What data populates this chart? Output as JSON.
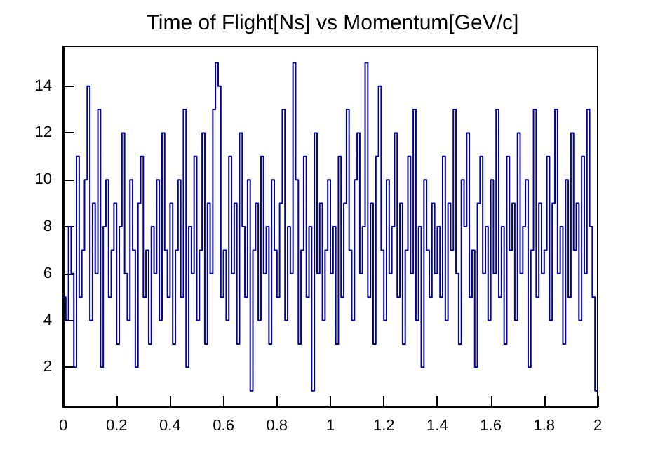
{
  "chart_data": {
    "type": "histogram",
    "title": "Time of Flight[Ns] vs Momentum[GeV/c]",
    "color": "#000099",
    "bins": [
      0,
      0.01,
      0.02,
      0.03,
      0.04,
      0.05,
      0.06,
      0.07,
      0.08,
      0.09,
      0.1,
      0.11,
      0.12,
      0.13,
      0.14,
      0.15,
      0.16,
      0.17,
      0.18,
      0.19,
      0.2,
      0.21,
      0.22,
      0.23,
      0.24,
      0.25,
      0.26,
      0.27,
      0.28,
      0.29,
      0.3,
      0.31,
      0.32,
      0.33,
      0.34,
      0.35,
      0.36,
      0.37,
      0.38,
      0.39,
      0.4,
      0.41,
      0.42,
      0.43,
      0.44,
      0.45,
      0.46,
      0.47,
      0.48,
      0.49,
      0.5,
      0.51,
      0.52,
      0.53,
      0.54,
      0.55,
      0.56,
      0.57,
      0.58,
      0.59,
      0.6,
      0.61,
      0.62,
      0.63,
      0.64,
      0.65,
      0.66,
      0.67,
      0.68,
      0.69,
      0.7,
      0.71,
      0.72,
      0.73,
      0.74,
      0.75,
      0.76,
      0.77,
      0.78,
      0.79,
      0.8,
      0.81,
      0.82,
      0.83,
      0.84,
      0.85,
      0.86,
      0.87,
      0.88,
      0.89,
      0.9,
      0.91,
      0.92,
      0.93,
      0.94,
      0.95,
      0.96,
      0.97,
      0.98,
      0.99,
      1,
      1.01,
      1.02,
      1.03,
      1.04,
      1.05,
      1.06,
      1.07,
      1.08,
      1.09,
      1.1,
      1.11,
      1.12,
      1.13,
      1.14,
      1.15,
      1.16,
      1.17,
      1.18,
      1.19,
      1.2,
      1.21,
      1.22,
      1.23,
      1.24,
      1.25,
      1.26,
      1.27,
      1.28,
      1.29,
      1.3,
      1.31,
      1.32,
      1.33,
      1.34,
      1.35,
      1.36,
      1.37,
      1.38,
      1.39,
      1.4,
      1.41,
      1.42,
      1.43,
      1.44,
      1.45,
      1.46,
      1.47,
      1.48,
      1.49,
      1.5,
      1.51,
      1.52,
      1.53,
      1.54,
      1.55,
      1.56,
      1.57,
      1.58,
      1.59,
      1.6,
      1.61,
      1.62,
      1.63,
      1.64,
      1.65,
      1.66,
      1.67,
      1.68,
      1.69,
      1.7,
      1.71,
      1.72,
      1.73,
      1.74,
      1.75,
      1.76,
      1.77,
      1.78,
      1.79,
      1.8,
      1.81,
      1.82,
      1.83,
      1.84,
      1.85,
      1.86,
      1.87,
      1.88,
      1.89,
      1.9,
      1.91,
      1.92,
      1.93,
      1.94,
      1.95,
      1.96,
      1.97,
      1.98,
      1.99,
      2
    ],
    "values": [
      5,
      4,
      8,
      6,
      2,
      11,
      5,
      7,
      10,
      14,
      4,
      9,
      6,
      13,
      2,
      8,
      10,
      5,
      7,
      9,
      3,
      8,
      12,
      6,
      4,
      10,
      7,
      2,
      9,
      11,
      5,
      7,
      3,
      8,
      6,
      10,
      4,
      12,
      7,
      5,
      9,
      3,
      7,
      10,
      5,
      13,
      2,
      8,
      6,
      11,
      4,
      7,
      12,
      3,
      9,
      6,
      13,
      15,
      14,
      5,
      7,
      4,
      11,
      6,
      9,
      3,
      12,
      8,
      5,
      10,
      1,
      7,
      9,
      4,
      11,
      6,
      8,
      3,
      10,
      7,
      5,
      9,
      13,
      4,
      8,
      6,
      15,
      10,
      3,
      7,
      11,
      5,
      8,
      1,
      12,
      6,
      9,
      4,
      7,
      10,
      6,
      8,
      3,
      11,
      5,
      9,
      13,
      7,
      4,
      10,
      12,
      6,
      8,
      15,
      5,
      9,
      3,
      11,
      14,
      7,
      4,
      10,
      6,
      8,
      12,
      5,
      9,
      3,
      7,
      11,
      6,
      13,
      4,
      8,
      2,
      10,
      7,
      5,
      9,
      6,
      8,
      5,
      11,
      4,
      9,
      7,
      13,
      6,
      3,
      10,
      8,
      12,
      5,
      7,
      2,
      9,
      11,
      6,
      8,
      4,
      10,
      6,
      13,
      5,
      8,
      3,
      11,
      7,
      9,
      4,
      12,
      6,
      8,
      10,
      2,
      7,
      13,
      5,
      9,
      6,
      7,
      11,
      4,
      9,
      13,
      6,
      8,
      3,
      10,
      5,
      12,
      7,
      9,
      4,
      11,
      6,
      13,
      8,
      5,
      1
    ],
    "xlim": [
      0,
      2
    ],
    "xticks": [
      0,
      0.2,
      0.4,
      0.6,
      0.8,
      1,
      1.2,
      1.4,
      1.6,
      1.8,
      2
    ],
    "ylim": [
      0.3,
      15.7
    ],
    "yticks": [
      2,
      4,
      6,
      8,
      10,
      12,
      14
    ],
    "grid": false
  }
}
